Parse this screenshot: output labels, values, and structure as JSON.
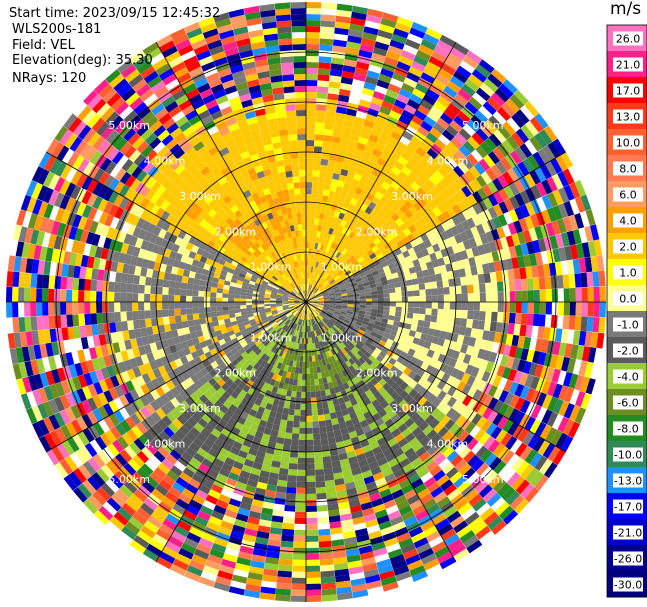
{
  "header": {
    "start_time": "Start time: 2023/09/15 12:45:32",
    "station": "WLS200s-181",
    "field": "Field: VEL",
    "elevation": "Elevation(deg): 35.30",
    "nrays": "NRays: 120"
  },
  "chart_data": {
    "type": "heatmap",
    "subtype": "polar-ppi",
    "field": "VEL",
    "elevation_deg": 35.3,
    "n_rays": 120,
    "max_range_km": 6,
    "range_rings_km": [
      1,
      2,
      3,
      4,
      5
    ],
    "range_ring_labels": [
      "1.00km",
      "2.00km",
      "3.00km",
      "4.00km",
      "5.00km"
    ],
    "colorbar": {
      "unit": "m/s",
      "ticks": [
        "26.0",
        "21.0",
        "17.0",
        "13.0",
        "10.0",
        "8.0",
        "6.0",
        "4.0",
        "2.0",
        "1.0",
        "0.0",
        "-1.0",
        "-2.0",
        "-4.0",
        "-6.0",
        "-8.0",
        "-10.0",
        "-13.0",
        "-17.0",
        "-21.0",
        "-26.0",
        "-30.0"
      ],
      "colors": [
        "#ff70c0",
        "#ff1f8c",
        "#ff0000",
        "#ff3a1a",
        "#ff6030",
        "#ff7a50",
        "#ff9a60",
        "#ffa000",
        "#ffc800",
        "#ffff00",
        "#ffff90",
        "#7a7a7a",
        "#5a5a5a",
        "#99cc33",
        "#6b8e23",
        "#228b22",
        "#2e8b57",
        "#1e90ff",
        "#0000ff",
        "#0000cd",
        "#00008b",
        "#000080"
      ]
    },
    "approx_pattern": {
      "near_range_north": "2.0 to 4.0 m/s (yellow/orange)",
      "near_range_south": "-2.0 to -6.0 m/s (green)",
      "near_range_west_east_band": "-1.0 to 1.0 m/s (gray)",
      "far_range": "noise, all classes"
    }
  }
}
